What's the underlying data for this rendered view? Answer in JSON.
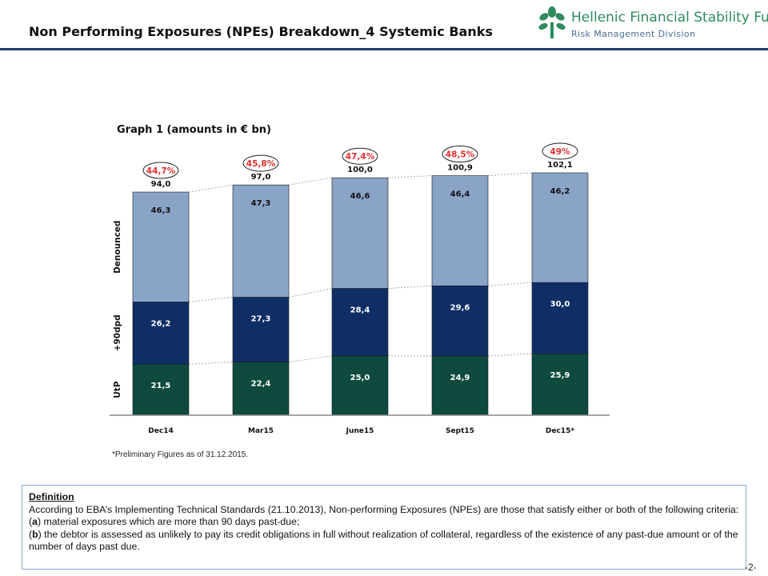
{
  "header": {
    "title": "Non Performing Exposures (NPEs) Breakdown_4 Systemic Banks",
    "logo_name": "Hellenic Financial Stability Fund",
    "logo_division": "Risk Management Division"
  },
  "chart_data": {
    "type": "bar",
    "stacked": true,
    "title": "Graph 1 (amounts in € bn)",
    "categories": [
      "Dec14",
      "Mar15",
      "June15",
      "Sept15",
      "Dec15*"
    ],
    "series": [
      {
        "name": "UtP",
        "values": [
          21.5,
          22.4,
          25.0,
          24.9,
          25.9
        ],
        "labels": [
          "21,5",
          "22,4",
          "25,0",
          "24,9",
          "25,9"
        ],
        "color": "#0f4a3e"
      },
      {
        "name": "+90dpd",
        "values": [
          26.2,
          27.3,
          28.4,
          29.6,
          30.0
        ],
        "labels": [
          "26,2",
          "27,3",
          "28,4",
          "29,6",
          "30,0"
        ],
        "color": "#0f2e66"
      },
      {
        "name": "Denounced",
        "values": [
          46.3,
          47.3,
          46.6,
          46.4,
          46.2
        ],
        "labels": [
          "46,3",
          "47,3",
          "46,6",
          "46,4",
          "46,2"
        ],
        "color": "#8aa4c8"
      }
    ],
    "totals": [
      94.0,
      97.0,
      100.0,
      100.9,
      102.1
    ],
    "total_labels": [
      "94,0",
      "97,0",
      "100,0",
      "100,9",
      "102,1"
    ],
    "ratios": [
      "44,7%",
      "45,8%",
      "47,4%",
      "48,5%",
      "49%"
    ],
    "ylim": [
      0,
      102.1
    ],
    "grid": false,
    "legend": "left, as vertical series labels"
  },
  "footnote": "*Preliminary Figures as of 31.12.2015.",
  "definition": {
    "title": "Definition",
    "intro": "According to EBA’s Implementing Technical Standards (21.10.2013), Non-performing Exposures (NPEs) are those that satisfy either or both of the following criteria:",
    "a_marker": "a",
    "a_text": " material exposures which are more than 90 days past-due;",
    "b_marker": "b",
    "b_text": " the debtor is assessed as unlikely to pay its credit obligations in full without realization of collateral, regardless of the existence of any past-due amount or of the number of days past due."
  },
  "page_number": "-2-",
  "colors": {
    "ratio_text": "#e03030",
    "header_rule": "#1f3a6e",
    "logo_green": "#2f8a5e",
    "logo_blue": "#4a6d96"
  }
}
